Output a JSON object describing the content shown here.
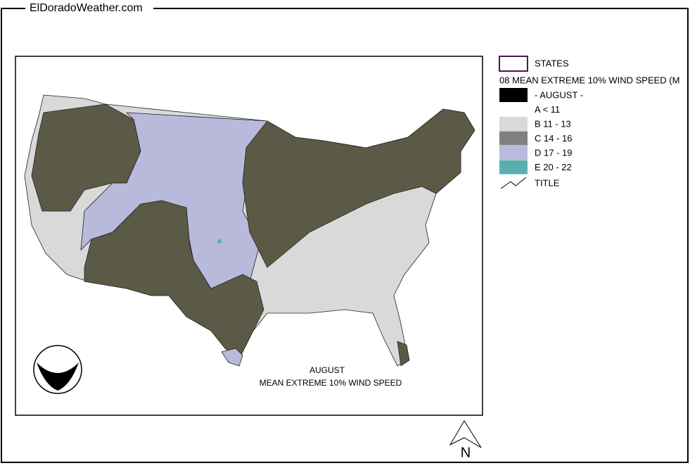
{
  "header": {
    "title": "ElDoradoWeather.com"
  },
  "legend": {
    "states": "STATES",
    "layer_title": "08 MEAN EXTREME 10% WIND SPEED (M",
    "items": [
      {
        "label": "- AUGUST -",
        "color": "#000000"
      },
      {
        "label": "A < 11",
        "color": "#ffffff"
      },
      {
        "label": "B 11 - 13",
        "color": "#d9d9d9"
      },
      {
        "label": "C 14 - 16",
        "color": "#808080"
      },
      {
        "label": "D 17 - 19",
        "color": "#b9b9dc"
      },
      {
        "label": "E 20 - 22",
        "color": "#5aaeae"
      }
    ],
    "title_item": "TITLE"
  },
  "map": {
    "caption_month": "AUGUST",
    "caption_title": "MEAN EXTREME 10% WIND SPEED",
    "north": "N"
  }
}
